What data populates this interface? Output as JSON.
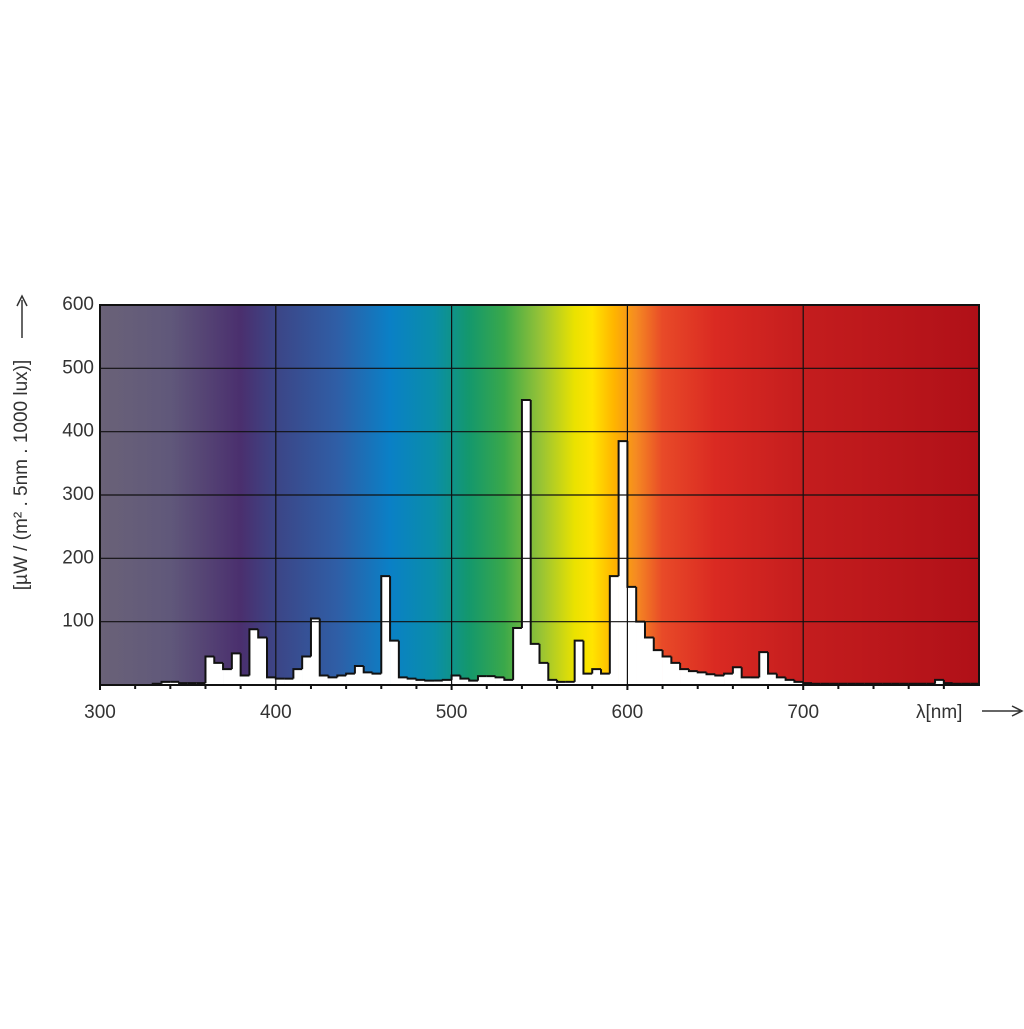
{
  "chart_data": {
    "type": "histogram",
    "y_label": "[µW / (m² . 5nm . 1000 lux)]",
    "x_label": "λ[nm]",
    "bins": [
      300,
      305,
      310,
      315,
      320,
      325,
      330,
      335,
      340,
      345,
      350,
      355,
      360,
      365,
      370,
      375,
      380,
      385,
      390,
      395,
      400,
      405,
      410,
      415,
      420,
      425,
      430,
      435,
      440,
      445,
      450,
      455,
      460,
      465,
      470,
      475,
      480,
      485,
      490,
      495,
      500,
      505,
      510,
      515,
      520,
      525,
      530,
      535,
      540,
      545,
      550,
      555,
      560,
      565,
      570,
      575,
      580,
      585,
      590,
      595,
      600,
      605,
      610,
      615,
      620,
      625,
      630,
      635,
      640,
      645,
      650,
      655,
      660,
      665,
      670,
      675,
      680,
      685,
      690,
      695,
      700,
      705,
      710,
      715,
      720,
      725,
      730,
      735,
      740,
      745,
      750,
      755,
      760,
      765,
      770,
      775,
      780,
      785,
      790,
      795,
      800
    ],
    "values": [
      0,
      0,
      0,
      0,
      0,
      0,
      2,
      5,
      5,
      3,
      3,
      3,
      45,
      35,
      25,
      50,
      15,
      88,
      75,
      12,
      10,
      10,
      25,
      45,
      105,
      15,
      12,
      15,
      18,
      30,
      20,
      18,
      172,
      70,
      12,
      10,
      8,
      7,
      7,
      8,
      15,
      10,
      7,
      14,
      14,
      12,
      8,
      90,
      450,
      65,
      35,
      8,
      5,
      5,
      70,
      18,
      25,
      18,
      172,
      385,
      155,
      100,
      75,
      55,
      45,
      35,
      25,
      22,
      20,
      17,
      15,
      18,
      28,
      12,
      12,
      52,
      18,
      12,
      8,
      5,
      3,
      2,
      2,
      2,
      2,
      2,
      2,
      2,
      2,
      2,
      2,
      2,
      2,
      2,
      2,
      8,
      3,
      2,
      2,
      2
    ],
    "color": "#ffffff",
    "xlim": [
      300,
      800
    ],
    "ylim": [
      0,
      600
    ],
    "xticks": [
      300,
      400,
      500,
      600,
      700
    ],
    "yticks": [
      100,
      200,
      300,
      400,
      500,
      600
    ],
    "xminorticks": [
      320,
      340,
      360,
      380,
      420,
      440,
      460,
      480,
      520,
      540,
      560,
      580,
      620,
      640,
      660,
      680,
      720,
      740,
      760,
      780
    ],
    "grid": true
  }
}
